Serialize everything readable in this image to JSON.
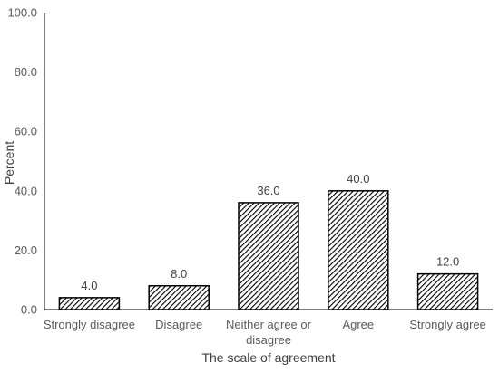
{
  "chart_data": {
    "type": "bar",
    "categories": [
      "Strongly disagree",
      "Disagree",
      "Neither agree or disagree",
      "Agree",
      "Strongly agree"
    ],
    "category_lines": [
      [
        "Strongly disagree"
      ],
      [
        "Disagree"
      ],
      [
        "Neither agree or",
        "disagree"
      ],
      [
        "Agree"
      ],
      [
        "Strongly agree"
      ]
    ],
    "values": [
      4.0,
      8.0,
      36.0,
      40.0,
      12.0
    ],
    "value_labels": [
      "4.0",
      "8.0",
      "36.0",
      "40.0",
      "12.0"
    ],
    "yticks": [
      0,
      20,
      40,
      60,
      80,
      100
    ],
    "ytick_labels": [
      "0.0",
      "20.0",
      "40.0",
      "60.0",
      "80.0",
      "100.0"
    ],
    "ylim": [
      0,
      100
    ],
    "xlabel": "The scale of agreement",
    "ylabel": "Percent",
    "grid": false,
    "bar_fill": "diagonal-hatch",
    "colors": {
      "bar_stroke": "#000000",
      "hatch": "#000000",
      "axis": "#000000",
      "text": "#595959"
    }
  }
}
